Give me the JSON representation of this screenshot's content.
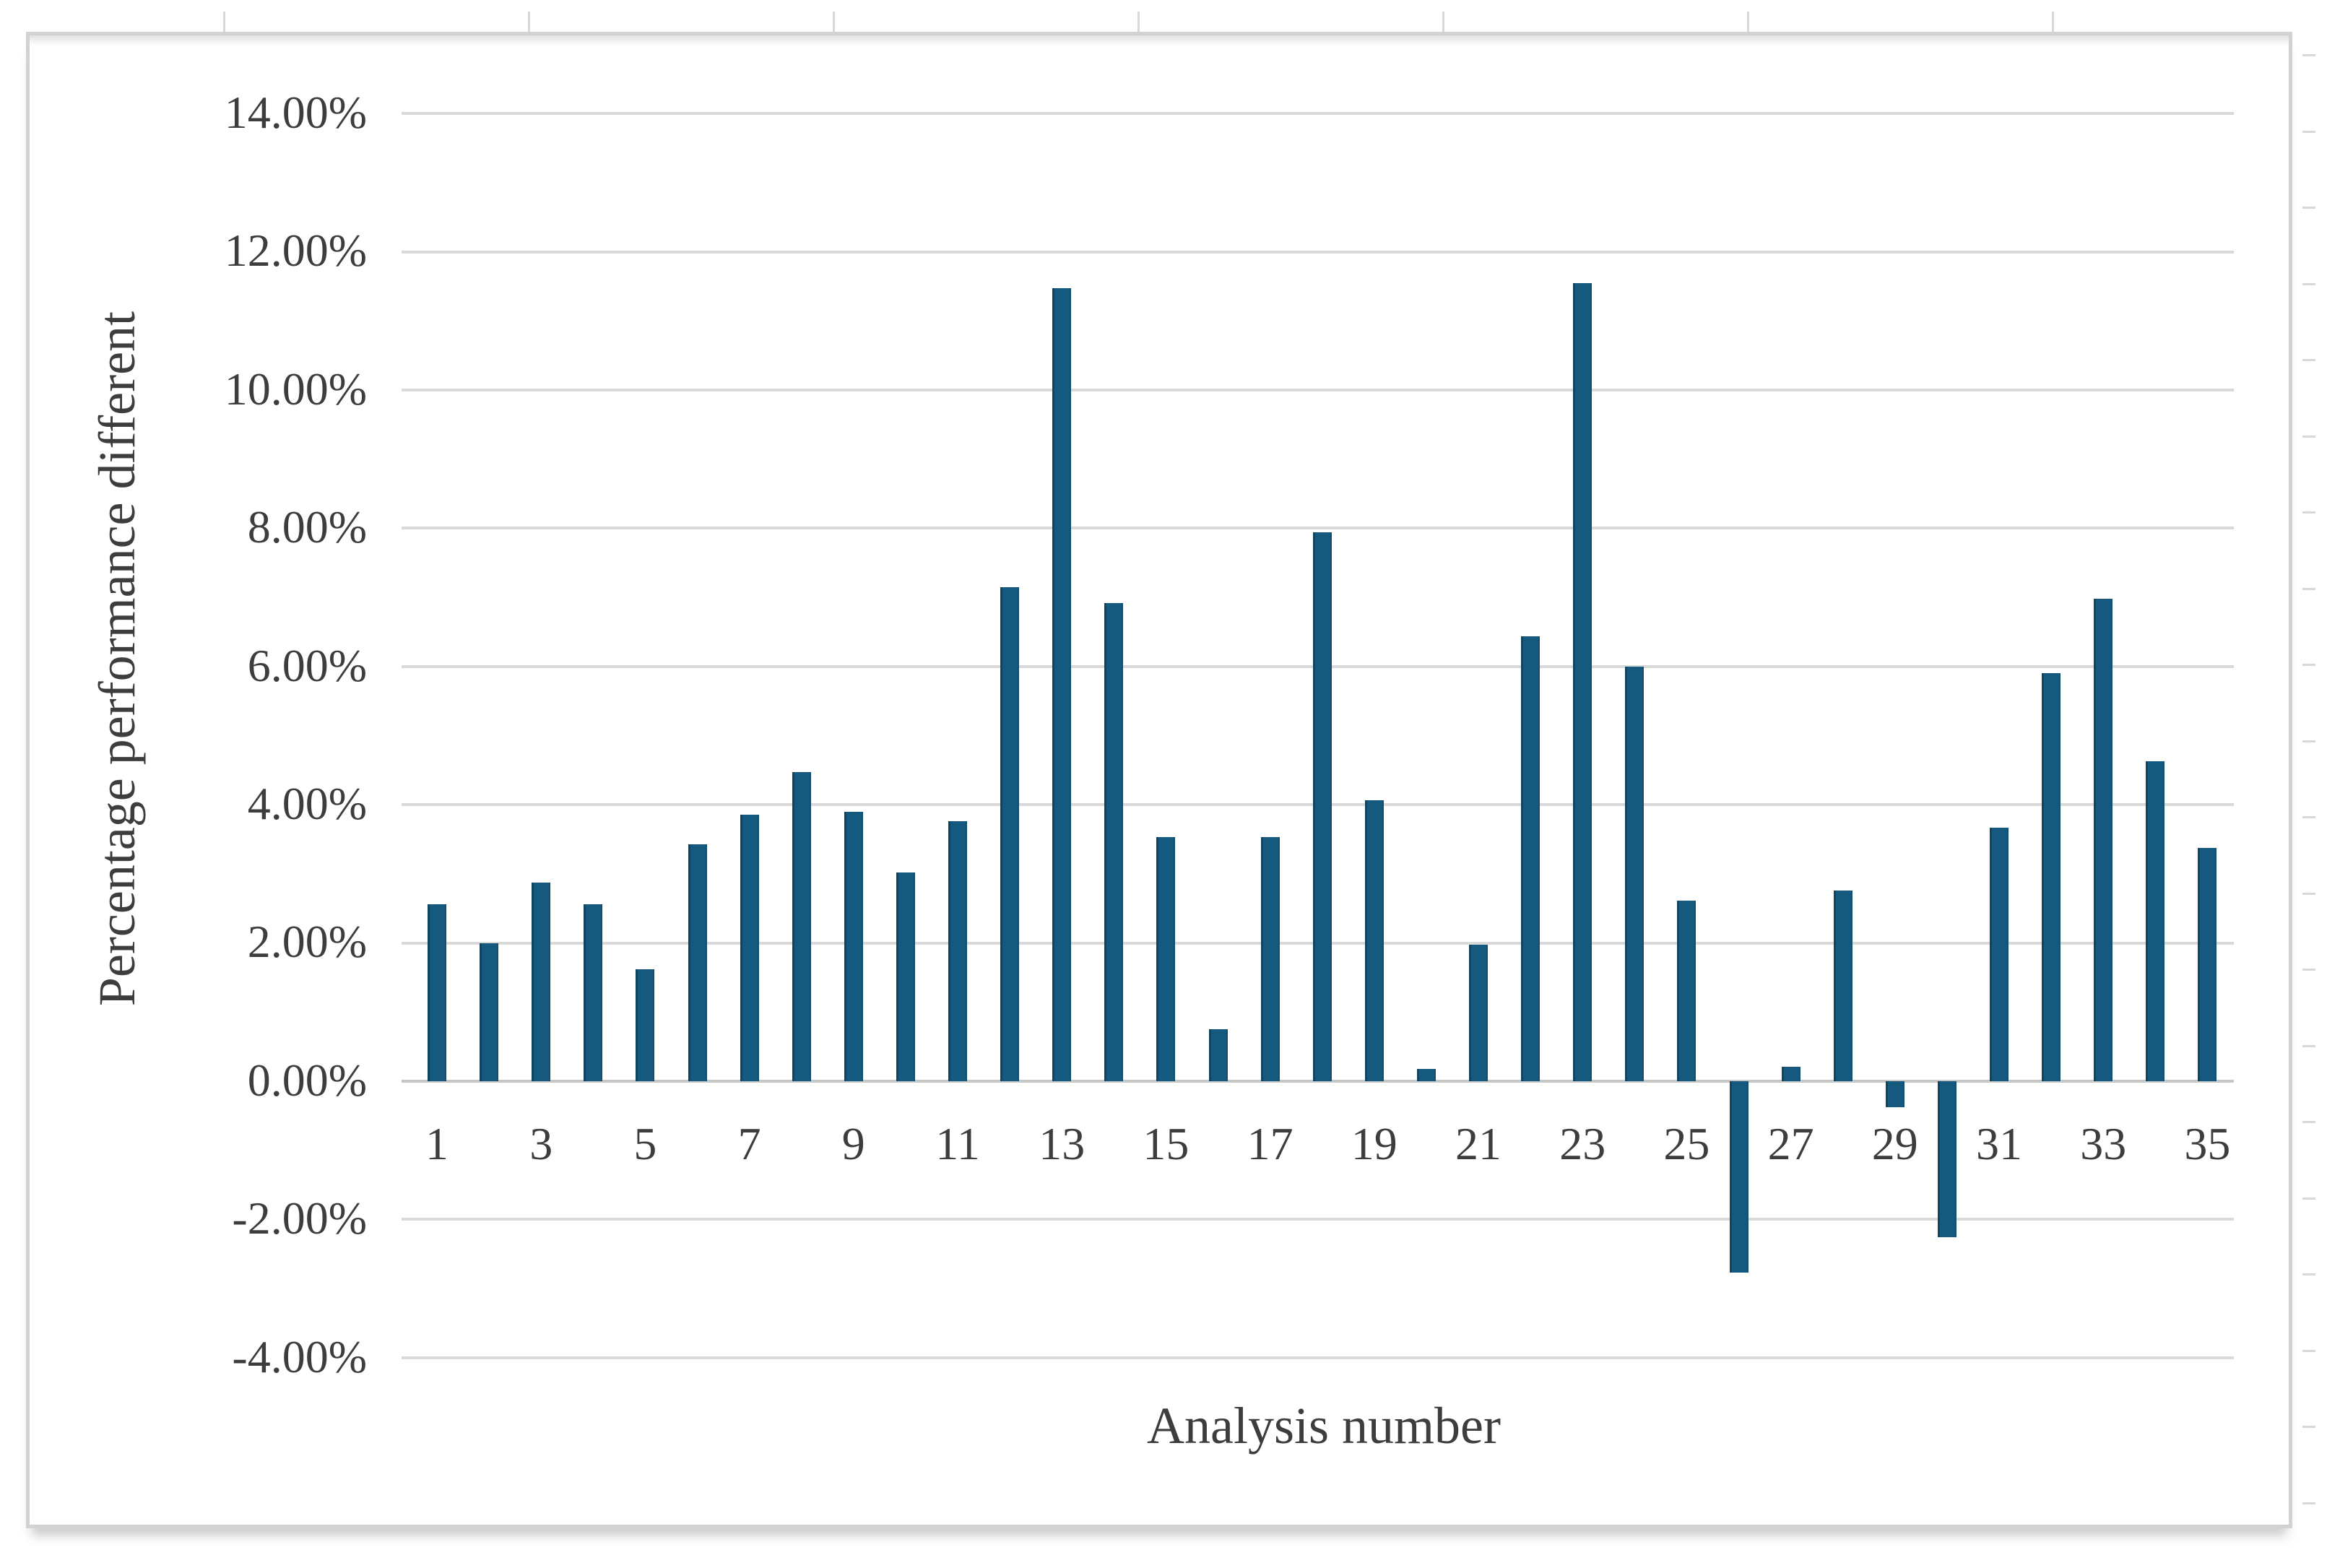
{
  "figure": {
    "background": "#FFFFFF",
    "frame_color": "#D2D2D2",
    "text_color": "#3D3D3D"
  },
  "chart_data": {
    "type": "bar",
    "title": "",
    "xlabel": "Analysis number",
    "ylabel": "Percentage performance different",
    "categories": [
      1,
      2,
      3,
      4,
      5,
      6,
      7,
      8,
      9,
      10,
      11,
      12,
      13,
      14,
      15,
      16,
      17,
      18,
      19,
      20,
      21,
      22,
      23,
      24,
      25,
      26,
      27,
      28,
      29,
      30,
      31,
      32,
      33,
      34,
      35
    ],
    "values": [
      2.56,
      2.0,
      2.87,
      2.56,
      1.62,
      3.43,
      3.86,
      4.47,
      3.9,
      3.02,
      3.76,
      7.15,
      11.47,
      6.92,
      3.53,
      0.75,
      3.53,
      7.94,
      4.06,
      0.18,
      1.98,
      6.44,
      11.55,
      6.0,
      2.61,
      -2.77,
      0.21,
      2.76,
      -0.38,
      -2.26,
      3.67,
      5.9,
      6.98,
      4.63,
      3.38
    ],
    "ylim": [
      -4,
      14
    ],
    "ytick_step": 2,
    "ytick_labels": [
      "14.00%",
      "12.00%",
      "10.00%",
      "8.00%",
      "6.00%",
      "4.00%",
      "2.00%",
      "0.00%",
      "-2.00%",
      "-4.00%"
    ],
    "xtick_labels_shown": [
      "1",
      "3",
      "5",
      "7",
      "9",
      "11",
      "13",
      "15",
      "17",
      "19",
      "21",
      "23",
      "25",
      "27",
      "29",
      "31",
      "33",
      "35"
    ],
    "grid": true,
    "legend": "none",
    "bar_color": "#15597E",
    "bar_edge_color": "#0E4A68",
    "gridline_color": "#D9D9D9",
    "axis_line_color": "#C6C6C6",
    "text_color": "#3D3D3D"
  }
}
